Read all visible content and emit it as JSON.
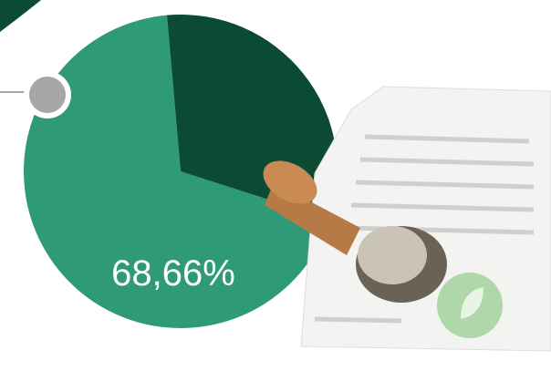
{
  "chart_data": {
    "type": "pie",
    "values": [
      68.66,
      31.34
    ],
    "value_labels": [
      "68,66%",
      null
    ],
    "colors": [
      "#2f9a78",
      "#0b4a33"
    ]
  }
}
